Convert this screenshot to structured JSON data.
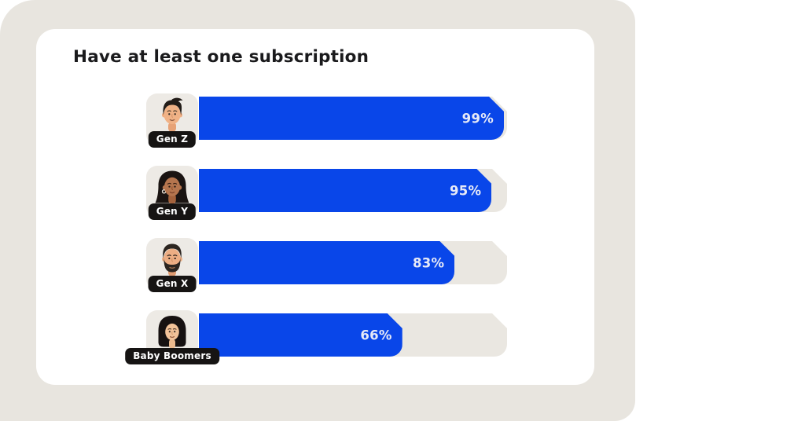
{
  "title": "Have at least one subscription",
  "colors": {
    "bar_fill": "#0946e9",
    "bar_track": "#eae7e1",
    "slide_background": "#e8e5df",
    "card_background": "#ffffff",
    "avatar_tile_background": "#edeae5",
    "label_pill_background": "#161413",
    "label_pill_text": "#ffffff",
    "value_text": "#e7eaf7",
    "title_text": "#1a1a1c"
  },
  "chart_data": {
    "type": "bar",
    "orientation": "horizontal",
    "title": "Have at least one subscription",
    "categories": [
      "Gen Z",
      "Gen Y",
      "Gen X",
      "Baby Boomers"
    ],
    "values": [
      99,
      95,
      83,
      66
    ],
    "value_labels": [
      "99%",
      "95%",
      "83%",
      "66%"
    ],
    "unit": "percent",
    "xlim": [
      0,
      100
    ],
    "grid": false,
    "legend": false,
    "value_label_position": "inside-end",
    "avatar_icons": [
      "gen-z-young-man",
      "gen-y-woman",
      "gen-x-bearded-man",
      "baby-boomer-woman"
    ]
  },
  "rows": [
    {
      "label": "Gen Z",
      "value": 99,
      "value_label": "99%"
    },
    {
      "label": "Gen Y",
      "value": 95,
      "value_label": "95%"
    },
    {
      "label": "Gen X",
      "value": 83,
      "value_label": "83%"
    },
    {
      "label": "Baby Boomers",
      "value": 66,
      "value_label": "66%"
    }
  ]
}
